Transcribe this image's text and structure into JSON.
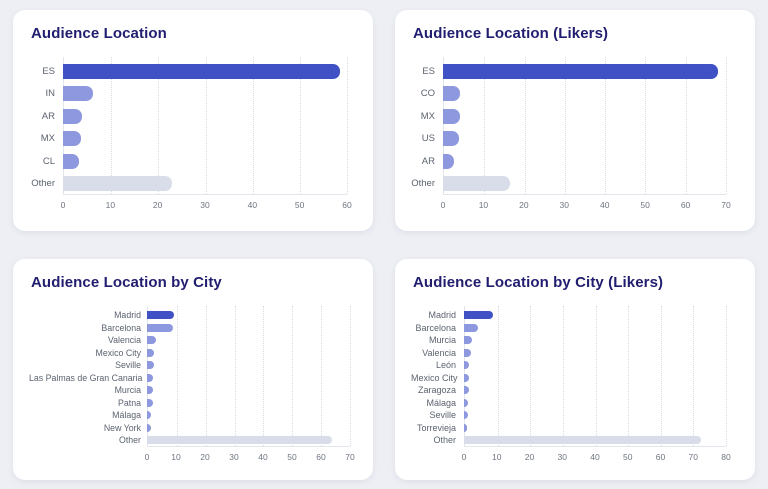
{
  "page": {
    "background": "#edeff4"
  },
  "palette": {
    "primary": "#3f51c4",
    "secondary": "#8d98de",
    "muted": "#d8dde9"
  },
  "chart_data": [
    {
      "type": "bar",
      "orientation": "horizontal",
      "title": "Audience Location",
      "categories": [
        "ES",
        "IN",
        "AR",
        "MX",
        "CL",
        "Other"
      ],
      "values": [
        58.5,
        6.3,
        4.0,
        3.7,
        3.4,
        23.1
      ],
      "bar_roles": [
        "primary",
        "secondary",
        "secondary",
        "secondary",
        "secondary",
        "muted"
      ],
      "xlim": [
        0,
        60
      ],
      "xticks": [
        0,
        10,
        20,
        30,
        40,
        50,
        60
      ],
      "grid": "vertical-dotted",
      "xlabel": "",
      "ylabel": ""
    },
    {
      "type": "bar",
      "orientation": "horizontal",
      "title": "Audience Location (Likers)",
      "categories": [
        "ES",
        "CO",
        "MX",
        "US",
        "AR",
        "Other"
      ],
      "values": [
        68.0,
        4.2,
        4.1,
        4.0,
        2.8,
        16.6
      ],
      "bar_roles": [
        "primary",
        "secondary",
        "secondary",
        "secondary",
        "secondary",
        "muted"
      ],
      "xlim": [
        0,
        70
      ],
      "xticks": [
        0,
        10,
        20,
        30,
        40,
        50,
        60,
        70
      ],
      "grid": "vertical-dotted",
      "xlabel": "",
      "ylabel": ""
    },
    {
      "type": "bar",
      "orientation": "horizontal",
      "title": "Audience Location by City",
      "categories": [
        "Madrid",
        "Barcelona",
        "Valencia",
        "Mexico City",
        "Seville",
        "Las Palmas de Gran Canaria",
        "Murcia",
        "Patna",
        "Málaga",
        "New York",
        "Other"
      ],
      "values": [
        9.3,
        9.0,
        3.1,
        2.5,
        2.4,
        2.0,
        2.0,
        1.9,
        1.4,
        1.3,
        63.8
      ],
      "bar_roles": [
        "primary",
        "secondary",
        "secondary",
        "secondary",
        "secondary",
        "secondary",
        "secondary",
        "secondary",
        "secondary",
        "secondary",
        "muted"
      ],
      "xlim": [
        0,
        70
      ],
      "xticks": [
        0,
        10,
        20,
        30,
        40,
        50,
        60,
        70
      ],
      "grid": "vertical-dotted",
      "xlabel": "",
      "ylabel": ""
    },
    {
      "type": "bar",
      "orientation": "horizontal",
      "title": "Audience Location by City (Likers)",
      "categories": [
        "Madrid",
        "Barcelona",
        "Murcia",
        "Valencia",
        "León",
        "Mexico City",
        "Zaragoza",
        "Málaga",
        "Seville",
        "Torrevieja",
        "Other"
      ],
      "values": [
        8.9,
        4.3,
        2.3,
        2.2,
        1.6,
        1.5,
        1.5,
        1.2,
        1.1,
        1.0,
        72.4
      ],
      "bar_roles": [
        "primary",
        "secondary",
        "secondary",
        "secondary",
        "secondary",
        "secondary",
        "secondary",
        "secondary",
        "secondary",
        "secondary",
        "muted"
      ],
      "xlim": [
        0,
        80
      ],
      "xticks": [
        0,
        10,
        20,
        30,
        40,
        50,
        60,
        70,
        80
      ],
      "grid": "vertical-dotted",
      "xlabel": "",
      "ylabel": ""
    }
  ]
}
